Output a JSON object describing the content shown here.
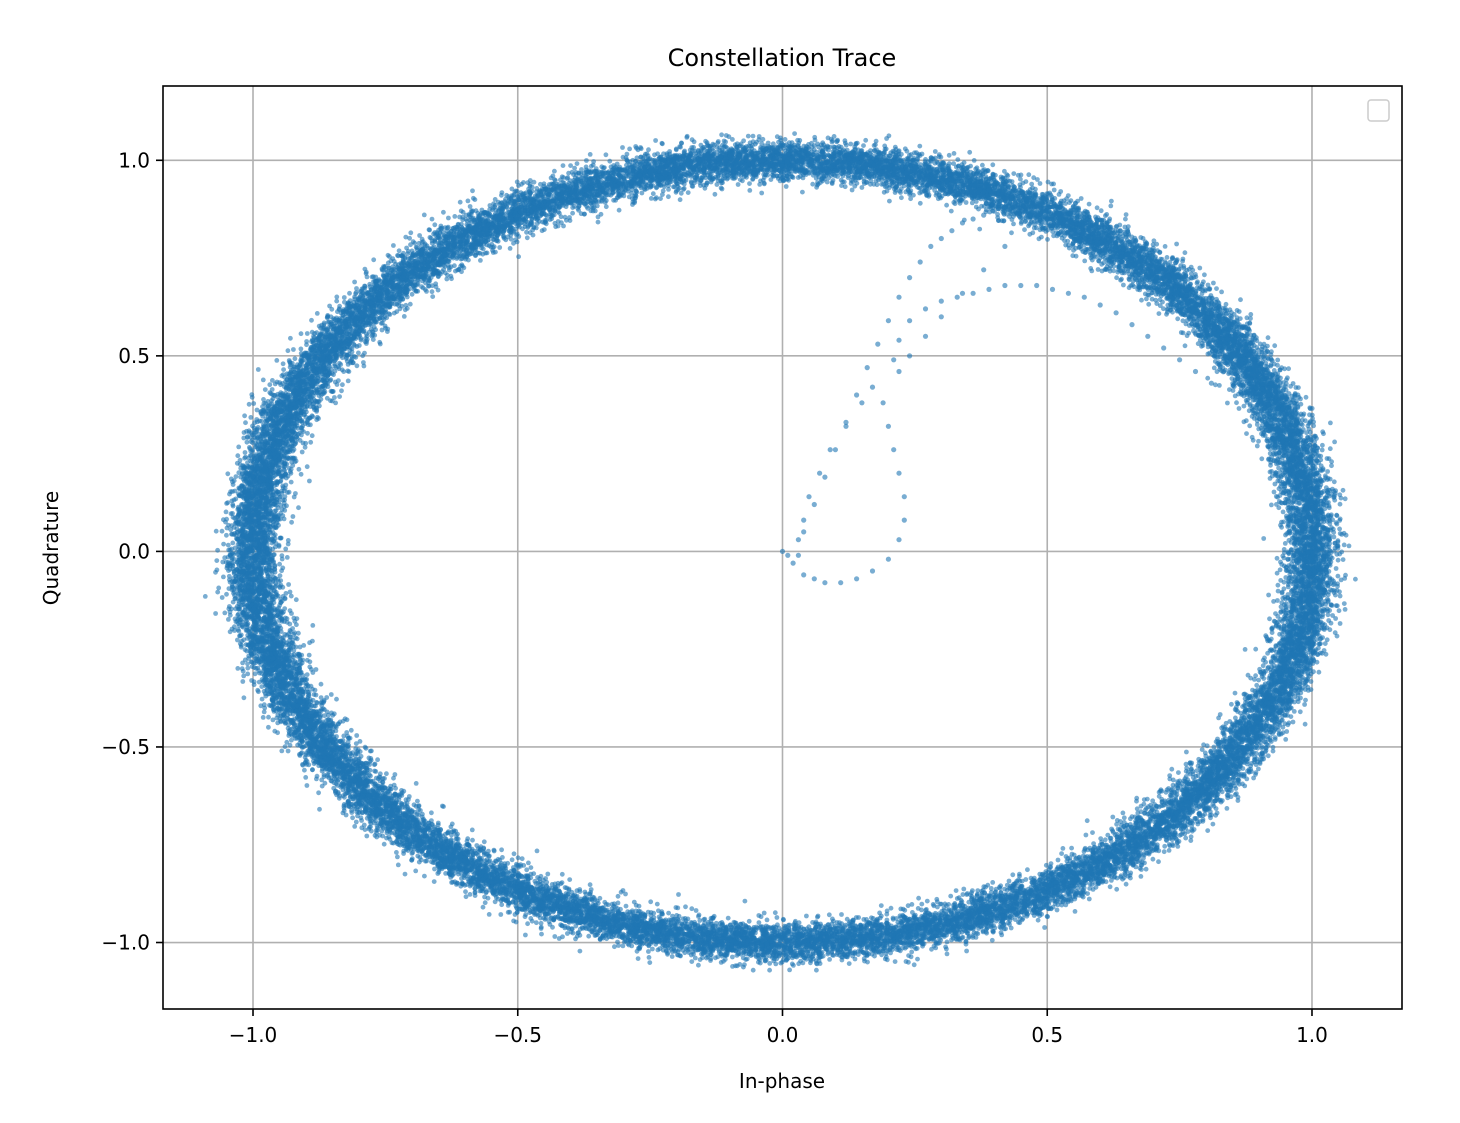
{
  "chart_data": {
    "type": "scatter",
    "title": "Constellation Trace",
    "xlabel": "In-phase",
    "ylabel": "Quadrature",
    "xlim": [
      -1.17,
      1.17
    ],
    "ylim": [
      -1.17,
      1.19
    ],
    "xticks": [
      -1.0,
      -0.5,
      0.0,
      0.5,
      1.0
    ],
    "yticks": [
      -1.0,
      -0.5,
      0.0,
      0.5,
      1.0
    ],
    "xtick_labels": [
      "−1.0",
      "−0.5",
      "0.0",
      "0.5",
      "1.0"
    ],
    "ytick_labels": [
      "−1.0",
      "−0.5",
      "0.0",
      "0.5",
      "1.0"
    ],
    "grid": true,
    "legend": "top-right (empty)",
    "marker_color": "#1f77b4",
    "marker_alpha": 0.6,
    "series": [
      {
        "description": "ring",
        "shape": "noisy unit circle",
        "center": [
          0.0,
          0.0
        ],
        "radius_x": 1.0,
        "radius_y": 1.0,
        "noise_sd": 0.025,
        "approx_point_count": 30000
      },
      {
        "description": "transient trace",
        "x": [
          0.0,
          0.01,
          0.02,
          0.04,
          0.06,
          0.08,
          0.11,
          0.14,
          0.17,
          0.2,
          0.22,
          0.23,
          0.23,
          0.22,
          0.21,
          0.2,
          0.19,
          0.17,
          0.15,
          0.12,
          0.09,
          0.07,
          0.05,
          0.04,
          0.03,
          0.03,
          0.04,
          0.06,
          0.08,
          0.1,
          0.12,
          0.14,
          0.16,
          0.18,
          0.2,
          0.22,
          0.24,
          0.26,
          0.28,
          0.3,
          0.32,
          0.34,
          0.36,
          0.38,
          0.4,
          0.42,
          0.44,
          0.45,
          0.42,
          0.38,
          0.34,
          0.3,
          0.27,
          0.24,
          0.22,
          0.21,
          0.22,
          0.24,
          0.27,
          0.3,
          0.33,
          0.36,
          0.39,
          0.42,
          0.45,
          0.48,
          0.51,
          0.54,
          0.57,
          0.6,
          0.63,
          0.66,
          0.69,
          0.72,
          0.75,
          0.78,
          0.81
        ],
        "y": [
          0.0,
          -0.01,
          -0.03,
          -0.06,
          -0.07,
          -0.08,
          -0.08,
          -0.07,
          -0.05,
          -0.02,
          0.03,
          0.08,
          0.14,
          0.2,
          0.26,
          0.32,
          0.38,
          0.42,
          0.38,
          0.32,
          0.26,
          0.2,
          0.14,
          0.08,
          0.03,
          -0.01,
          0.05,
          0.12,
          0.19,
          0.26,
          0.33,
          0.4,
          0.47,
          0.53,
          0.59,
          0.65,
          0.7,
          0.74,
          0.78,
          0.8,
          0.82,
          0.84,
          0.85,
          0.86,
          0.87,
          0.88,
          0.89,
          0.87,
          0.78,
          0.72,
          0.66,
          0.6,
          0.55,
          0.5,
          0.46,
          0.49,
          0.54,
          0.59,
          0.62,
          0.64,
          0.65,
          0.66,
          0.67,
          0.68,
          0.68,
          0.68,
          0.67,
          0.66,
          0.65,
          0.63,
          0.61,
          0.58,
          0.55,
          0.52,
          0.49,
          0.46,
          0.43
        ]
      }
    ]
  }
}
